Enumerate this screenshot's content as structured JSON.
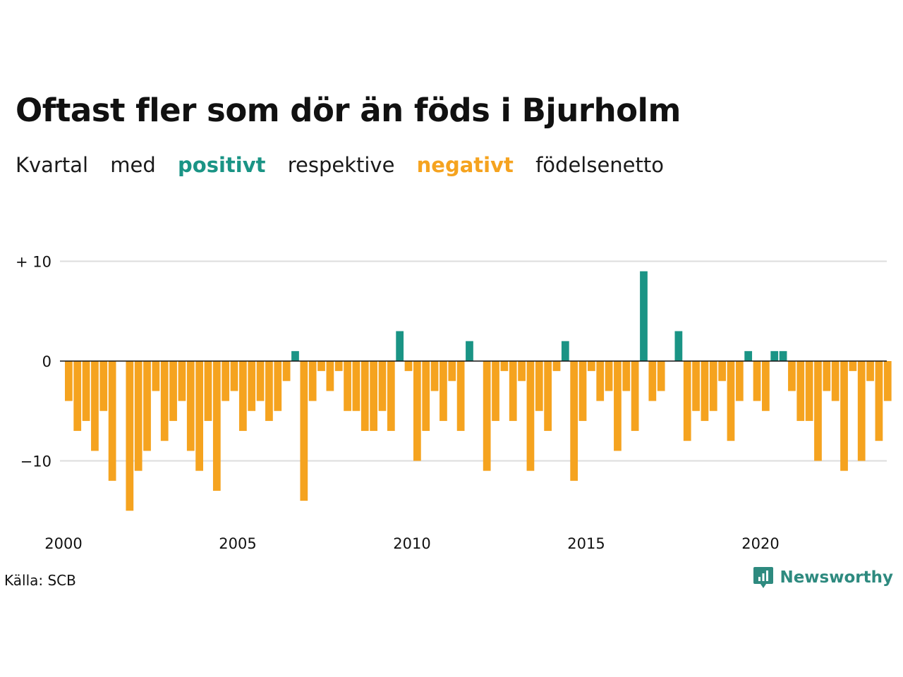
{
  "colors": {
    "positive": "#1a9485",
    "negative": "#f5a31f",
    "grid": "#dddddd",
    "zero_line": "#111111",
    "brand": "#2e8a7f"
  },
  "header": {
    "title": "Oftast fler som dör än föds i Bjurholm",
    "subtitle": {
      "w1": "Kvartal",
      "w2": "med",
      "positive_word": "positivt",
      "w3": "respektive",
      "negative_word": "negativt",
      "w4": "födelsenetto"
    }
  },
  "footer": {
    "source": "Källa: SCB",
    "brand": "Newsworthy",
    "brand_icon": "newsworthy-logo-icon"
  },
  "chart_data": {
    "type": "bar",
    "start_year": 2000,
    "periods_per_year": 4,
    "x_ticks": [
      "2000",
      "2005",
      "2010",
      "2015",
      "2020"
    ],
    "y_ticks": [
      {
        "value": 10,
        "label": "+ 10"
      },
      {
        "value": 0,
        "label": "0"
      },
      {
        "value": -10,
        "label": "−10"
      }
    ],
    "ylim": [
      -15,
      10
    ],
    "grid": true,
    "values": [
      -4,
      -7,
      -6,
      -9,
      -5,
      -12,
      0,
      -15,
      -11,
      -9,
      -3,
      -8,
      -6,
      -4,
      -9,
      -11,
      -6,
      -13,
      -4,
      -3,
      -7,
      -5,
      -4,
      -6,
      -5,
      -2,
      1,
      -14,
      -4,
      -1,
      -3,
      -1,
      -5,
      -5,
      -7,
      -7,
      -5,
      -7,
      3,
      -1,
      -10,
      -7,
      -3,
      -6,
      -2,
      -7,
      2,
      0,
      -11,
      -6,
      -1,
      -6,
      -2,
      -11,
      -5,
      -7,
      -1,
      2,
      -12,
      -6,
      -1,
      -4,
      -3,
      -9,
      -3,
      -7,
      9,
      -4,
      -3,
      0,
      3,
      -8,
      -5,
      -6,
      -5,
      -2,
      -8,
      -4,
      1,
      -4,
      -5,
      1,
      1,
      -3,
      -6,
      -6,
      -10,
      -3,
      -4,
      -11,
      -1,
      -10,
      -2,
      -8,
      -4
    ]
  }
}
